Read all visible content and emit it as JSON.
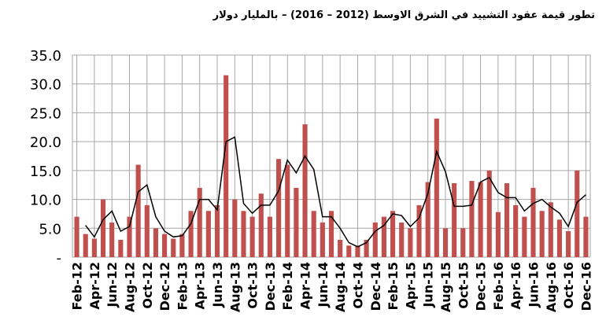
{
  "chart_data": {
    "type": "bar",
    "title": "تطور قيمة عقود التشييد في الشرق الاوسط (2012 – 2016) – بالمليار دولار",
    "ylim": [
      0,
      35
    ],
    "yticks": [
      "-",
      "5.0",
      "10.0",
      "15.0",
      "20.0",
      "25.0",
      "30.0",
      "35.0"
    ],
    "grid": true,
    "colors": {
      "bar": "#c0504d",
      "line": "#000000",
      "grid": "#a6a6a6"
    },
    "categories": [
      "Feb-12",
      "Mar-12",
      "Apr-12",
      "May-12",
      "Jun-12",
      "Jul-12",
      "Aug-12",
      "Sep-12",
      "Oct-12",
      "Nov-12",
      "Dec-12",
      "Jan-13",
      "Feb-13",
      "Mar-13",
      "Apr-13",
      "May-13",
      "Jun-13",
      "Jul-13",
      "Aug-13",
      "Sep-13",
      "Oct-13",
      "Nov-13",
      "Dec-13",
      "Jan-14",
      "Feb-14",
      "Mar-14",
      "Apr-14",
      "May-14",
      "Jun-14",
      "Jul-14",
      "Aug-14",
      "Sep-14",
      "Oct-14",
      "Nov-14",
      "Dec-14",
      "Jan-15",
      "Feb-15",
      "Mar-15",
      "Apr-15",
      "May-15",
      "Jun-15",
      "Jul-15",
      "Aug-15",
      "Sep-15",
      "Oct-15",
      "Nov-15",
      "Dec-15",
      "Jan-16",
      "Feb-16",
      "Mar-16",
      "Apr-16",
      "May-16",
      "Jun-16",
      "Jul-16",
      "Aug-16",
      "Sep-16",
      "Oct-16",
      "Nov-16",
      "Dec-16"
    ],
    "tick_labels": [
      "Feb-12",
      "Apr-12",
      "Jun-12",
      "Aug-12",
      "Oct-12",
      "Dec-12",
      "Feb-13",
      "Apr-13",
      "Jun-13",
      "Aug-13",
      "Oct-13",
      "Dec-13",
      "Feb-14",
      "Apr-14",
      "Jun-14",
      "Aug-14",
      "Oct-14",
      "Dec-14",
      "Feb-15",
      "Apr-15",
      "Jun-15",
      "Aug-15",
      "Oct-15",
      "Dec-15",
      "Feb-16",
      "Apr-16",
      "Jun-16",
      "Aug-16",
      "Oct-16",
      "Dec-16"
    ],
    "series": [
      {
        "type": "bar",
        "values": [
          7,
          4,
          3.2,
          10,
          6,
          3,
          7,
          16,
          9,
          5,
          4,
          3.2,
          4,
          8,
          12,
          8,
          9,
          31.5,
          10,
          8,
          7,
          11,
          7,
          17,
          16,
          12,
          23,
          8,
          6,
          8,
          3,
          2,
          2,
          3,
          6,
          7,
          8,
          6,
          5,
          9,
          13,
          24,
          5,
          12.8,
          5,
          13.2,
          13,
          15,
          7.8,
          12.8,
          9,
          7,
          12,
          8,
          9.5,
          6.5,
          4.5,
          15,
          7
        ]
      },
      {
        "type": "line",
        "values": [
          null,
          5.5,
          3.5,
          6.5,
          8,
          4.5,
          5.3,
          11.3,
          12.5,
          7,
          4.5,
          3.5,
          3.7,
          5.8,
          10,
          10,
          8.2,
          20,
          20.8,
          9.3,
          7.6,
          9,
          9,
          11.5,
          16.8,
          14.6,
          17.5,
          15.2,
          7,
          7,
          5,
          2.5,
          1.8,
          2.5,
          4.5,
          5.5,
          7.5,
          7.2,
          5.3,
          6.8,
          11,
          18.3,
          14.8,
          8.8,
          8.8,
          9,
          13,
          13.8,
          11.2,
          10.3,
          10.3,
          8,
          9.3,
          10,
          8.7,
          7.6,
          5.3,
          9.5,
          10.8
        ]
      }
    ]
  }
}
